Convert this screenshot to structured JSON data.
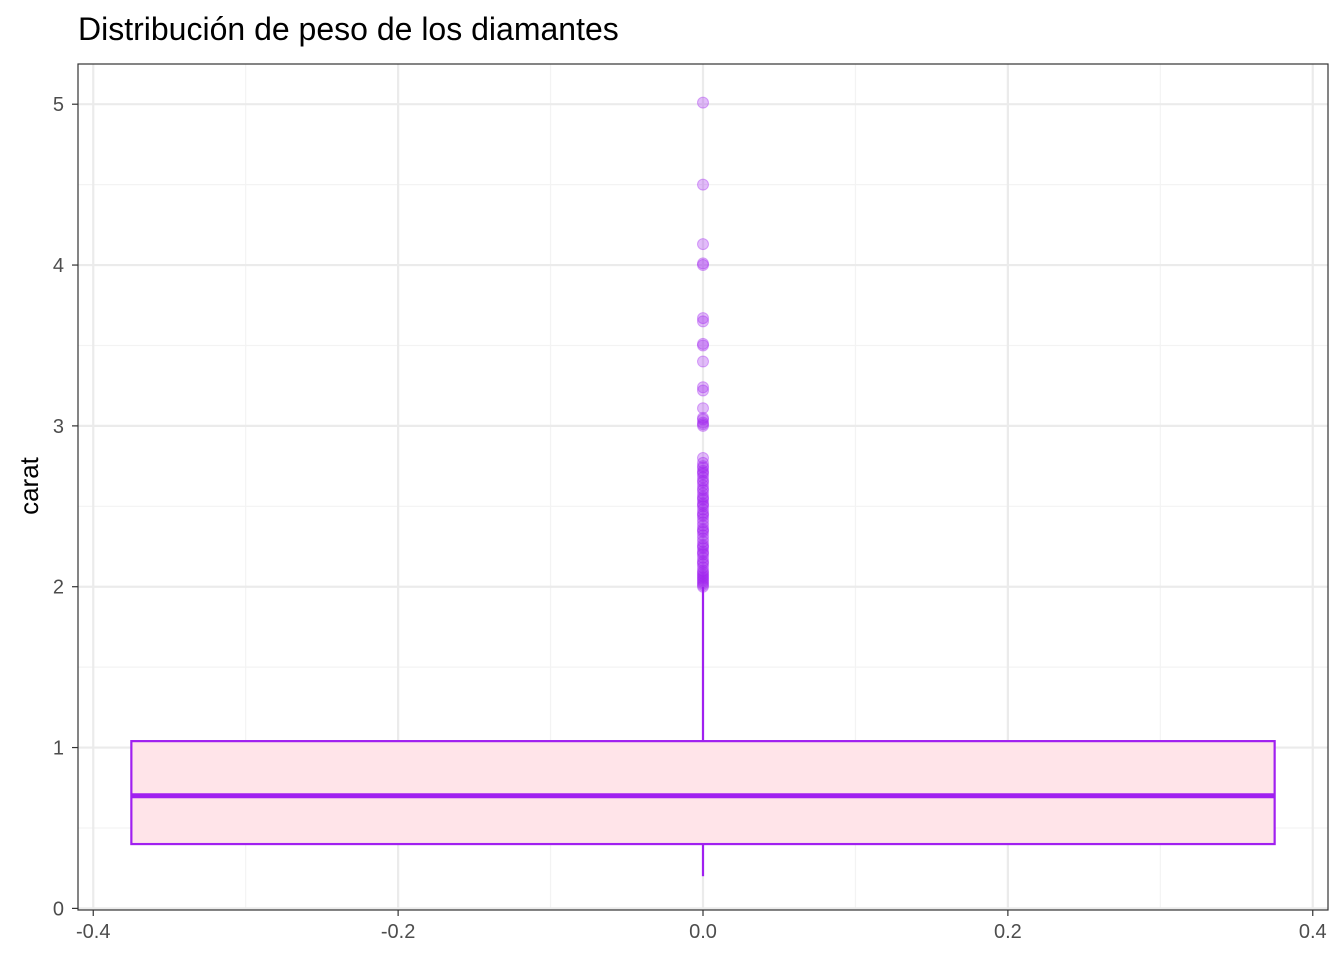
{
  "chart_data": {
    "type": "boxplot",
    "title": "Distribución de peso de los diamantes",
    "xlabel": "",
    "ylabel": "carat",
    "xlim": [
      -0.41,
      0.41
    ],
    "ylim": [
      -0.01,
      5.25
    ],
    "x_ticks": [
      -0.4,
      -0.2,
      0.0,
      0.2,
      0.4
    ],
    "x_tick_labels": [
      "-0.4",
      "-0.2",
      "0.0",
      "0.2",
      "0.4"
    ],
    "y_ticks": [
      0,
      1,
      2,
      3,
      4,
      5
    ],
    "y_tick_labels": [
      "0",
      "1",
      "2",
      "3",
      "4",
      "5"
    ],
    "grid": true,
    "box": {
      "x": 0.0,
      "x_min": -0.375,
      "x_max": 0.375,
      "whisker_low": 0.2,
      "q1": 0.4,
      "median": 0.7,
      "q3": 1.04,
      "whisker_high": 2.0
    },
    "outliers": [
      2.0,
      2.01,
      2.02,
      2.03,
      2.04,
      2.05,
      2.06,
      2.07,
      2.08,
      2.09,
      2.1,
      2.12,
      2.14,
      2.15,
      2.16,
      2.18,
      2.2,
      2.21,
      2.22,
      2.24,
      2.25,
      2.26,
      2.28,
      2.3,
      2.32,
      2.34,
      2.35,
      2.36,
      2.38,
      2.4,
      2.42,
      2.44,
      2.45,
      2.46,
      2.48,
      2.5,
      2.51,
      2.52,
      2.54,
      2.55,
      2.56,
      2.58,
      2.6,
      2.61,
      2.63,
      2.65,
      2.66,
      2.68,
      2.7,
      2.71,
      2.72,
      2.74,
      2.75,
      2.77,
      2.8,
      3.0,
      3.01,
      3.02,
      3.04,
      3.05,
      3.11,
      3.22,
      3.24,
      3.4,
      3.5,
      3.51,
      3.65,
      3.67,
      4.0,
      4.01,
      4.13,
      4.5,
      5.01
    ],
    "colors": {
      "box_outline": "#a020f0",
      "box_fill": "#ffe4e9",
      "outlier": "#a020f0",
      "grid_major": "#ebebeb",
      "grid_minor": "#f3f3f3",
      "panel_border": "#333333"
    }
  }
}
